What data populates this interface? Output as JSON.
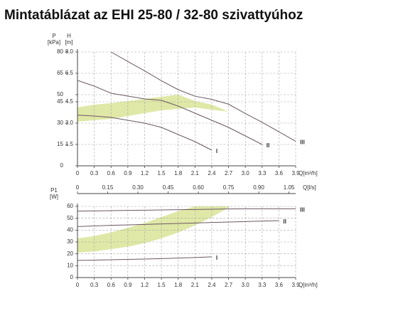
{
  "chart_data": [
    {
      "type": "line",
      "title": "Mintatáblázat az EHI 25-80 / 32-80 szivattyúhoz",
      "ylabel": "P",
      "yunit": "[kPa]",
      "y2label": "H",
      "y2unit": "[m]",
      "xlabel": "Q[m³/h]",
      "x": [
        0,
        0.3,
        0.6,
        0.9,
        1.2,
        1.5,
        1.8,
        2.1,
        2.4,
        2.7,
        3,
        3.3,
        3.6,
        3.9
      ],
      "xlim": [
        0,
        3.9
      ],
      "xticks": [
        0,
        0.3,
        0.6,
        0.9,
        1.2,
        1.5,
        1.8,
        2.1,
        2.4,
        2.7,
        {
          "value": 3,
          "label": "3.0"
        },
        3.3,
        3.6,
        3.9
      ],
      "ylim": [
        0,
        80
      ],
      "yticks": [
        0,
        15,
        30,
        45,
        50,
        65,
        80
      ],
      "y2lim": [
        0,
        8
      ],
      "y2ticks": [
        1.5,
        {
          "value": 3,
          "label": "3.0"
        },
        4.5,
        6.5,
        {
          "value": 8,
          "label": "8.0"
        }
      ],
      "grid": true,
      "band": {
        "color": "#dfe8a6",
        "lower": [
          31,
          32,
          33,
          35,
          37,
          39,
          40,
          41,
          39.4,
          38,
          null,
          null,
          null,
          null
        ],
        "upper": [
          41,
          43,
          44,
          45.5,
          47,
          48.5,
          50,
          45.5,
          43,
          38,
          null,
          null,
          null,
          null
        ]
      },
      "series": [
        {
          "name": "I",
          "color": "#6b5865",
          "values": [
            35.6,
            35,
            34,
            32,
            30,
            27,
            22,
            17,
            11,
            null,
            null,
            null,
            null,
            null
          ]
        },
        {
          "name": "II",
          "color": "#6b5865",
          "values": [
            60,
            56,
            51,
            49,
            47,
            46,
            42,
            37,
            32,
            27,
            21,
            15,
            null,
            null
          ]
        },
        {
          "name": "III",
          "color": "#6b5865",
          "values": [
            null,
            null,
            80,
            73.3,
            66.7,
            59.8,
            53.5,
            48.9,
            46.7,
            43.3,
            36.7,
            30.6,
            23.9,
            17.2
          ]
        }
      ]
    },
    {
      "type": "line",
      "ylabel": "P1",
      "yunit": "[W]",
      "xlabel": "Q[m³/h]",
      "x2label": "Q[l/s]",
      "x": [
        0,
        0.3,
        0.6,
        0.9,
        1.2,
        1.5,
        1.8,
        2.1,
        2.4,
        2.7,
        3,
        3.3,
        3.6,
        3.9
      ],
      "xlim": [
        0,
        3.9
      ],
      "xticks": [
        0,
        0.3,
        0.6,
        0.9,
        1.2,
        1.5,
        1.8,
        2.1,
        2.4,
        2.7,
        {
          "value": 3,
          "label": "3.0"
        },
        3.3,
        3.6,
        3.9
      ],
      "x2lim": [
        0,
        1.0833
      ],
      "x2ticks": [
        0,
        0.15,
        {
          "value": 0.3,
          "label": "0.30"
        },
        0.45,
        {
          "value": 0.6,
          "label": "0.60"
        },
        0.75,
        {
          "value": 0.9,
          "label": "0.90"
        },
        1.05
      ],
      "ylim": [
        0,
        60
      ],
      "yticks": [
        0,
        10,
        20,
        30,
        40,
        50,
        60
      ],
      "grid": true,
      "band": {
        "color": "#dfe8a6",
        "lower": [
          21,
          22,
          24,
          26,
          29,
          33,
          38,
          44,
          51,
          59,
          null,
          null,
          null,
          null
        ],
        "upper": [
          33,
          35,
          38,
          42,
          46,
          51,
          56,
          60,
          60,
          60,
          null,
          null,
          null,
          null
        ]
      },
      "series": [
        {
          "name": "I",
          "color": "#6b5865",
          "values": [
            14.5,
            14.7,
            15,
            15.3,
            15.6,
            16,
            16.4,
            16.9,
            17.5,
            null,
            null,
            null,
            null,
            null
          ]
        },
        {
          "name": "II",
          "color": "#6b5865",
          "values": [
            43,
            43.5,
            44,
            44.4,
            44.8,
            45.2,
            45.6,
            46,
            46.4,
            46.8,
            47.2,
            47.6,
            48,
            null
          ]
        },
        {
          "name": "III",
          "color": "#6b5865",
          "values": [
            56,
            56.2,
            56.4,
            56.6,
            56.8,
            57,
            57.2,
            57.4,
            57.6,
            57.8,
            58,
            58,
            58,
            58
          ]
        }
      ]
    }
  ]
}
